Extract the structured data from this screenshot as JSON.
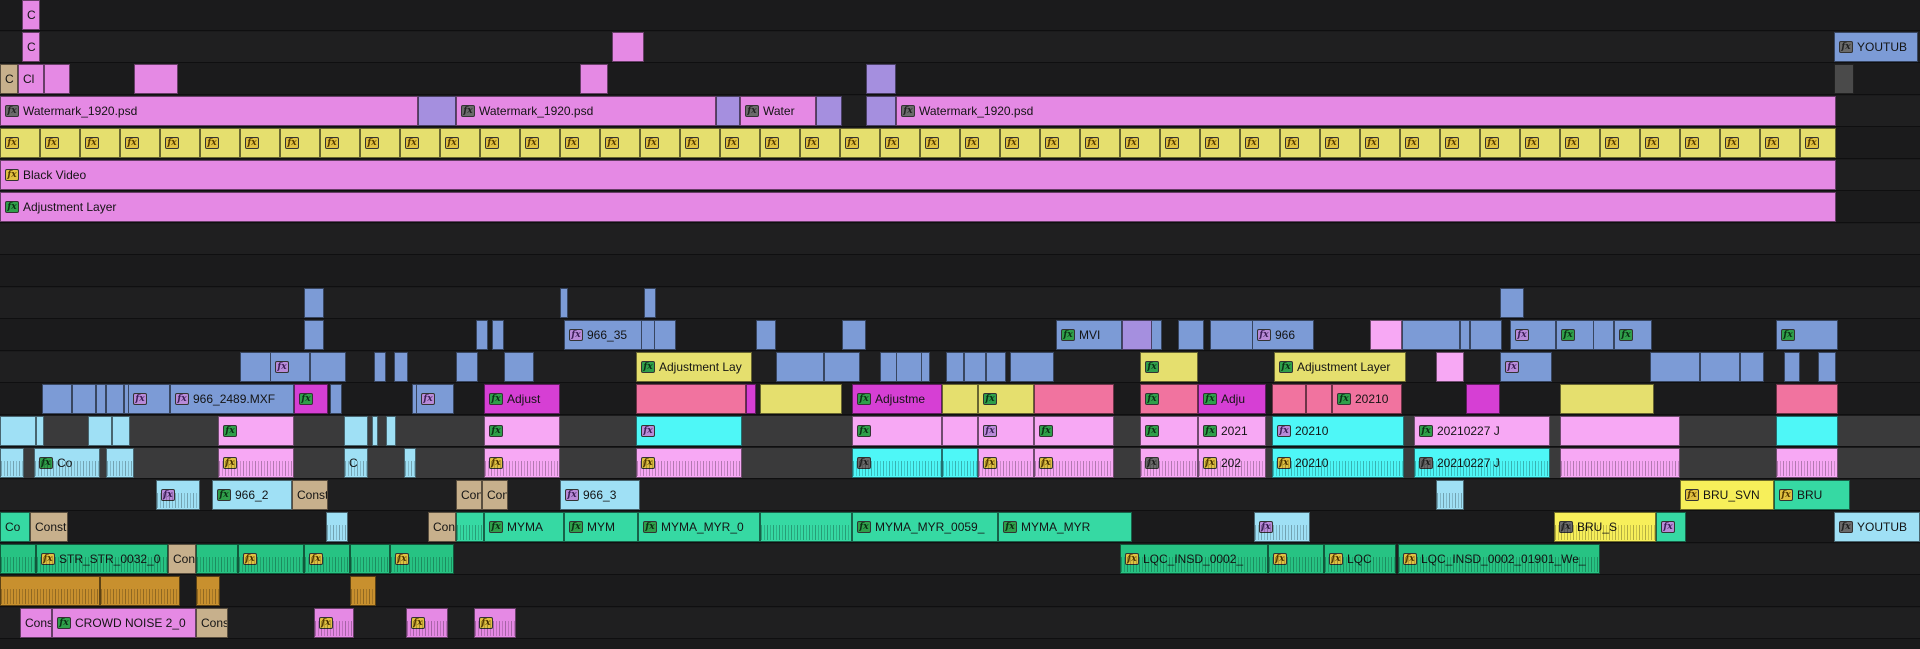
{
  "colors": {
    "pink": "#e589e4",
    "yellow": "#e5df6e",
    "lavender": "#a58fdf",
    "blue": "#7c9bd6",
    "magenta": "#d63fd4",
    "cyan": "#4ef7f7",
    "lightpink": "#f7a8f4",
    "lightblue": "#9fe0f5",
    "teal": "#36d9a3",
    "green": "#27c383",
    "orange": "#c8902e",
    "beige": "#c7b08c",
    "salmon": "#f1739f",
    "yellow2": "#f7ef5a",
    "grey": "#4a4a4a"
  },
  "labels": {
    "youtube": "YOUTUB",
    "watermark": "Watermark_1920.psd",
    "water": "Water",
    "black_video": "Black Video",
    "adjustment_layer": "Adjustment Layer",
    "adjustment_lay": "Adjustment Lay",
    "adjust": "Adjust",
    "adjustme": "Adjustme",
    "adju": "Adju",
    "mvi": "MVI",
    "n966": "966",
    "n966_35": "966_35",
    "n966_2489": "966_2489.MXF",
    "n966_2": "966_2",
    "n966_3": "966_3",
    "n20210": "20210",
    "n2021": "2021",
    "n202": "202",
    "n20210227j": "20210227 J",
    "const": "Const",
    "cons": "Cons",
    "con": "Con",
    "co": "Co",
    "c": "C",
    "cl": "Cl",
    "myma": "MYMA",
    "mym": "MYM",
    "myma_myr_0": "MYMA_MYR_0",
    "myma_myr_0059": "MYMA_MYR_0059_",
    "myma_myr": "MYMA_MYR",
    "str": "STR_STR_0032_0",
    "lqc_insd_0002": "LQC_INSD_0002_",
    "lqc": "LQC",
    "lqc_long": "LQC_INSD_0002_01901_We_",
    "bru_svn": "BRU_SVN",
    "bru": "BRU",
    "bru_s": "BRU_S",
    "crowd": "CROWD NOISE 2_0",
    "fx": "fx"
  }
}
